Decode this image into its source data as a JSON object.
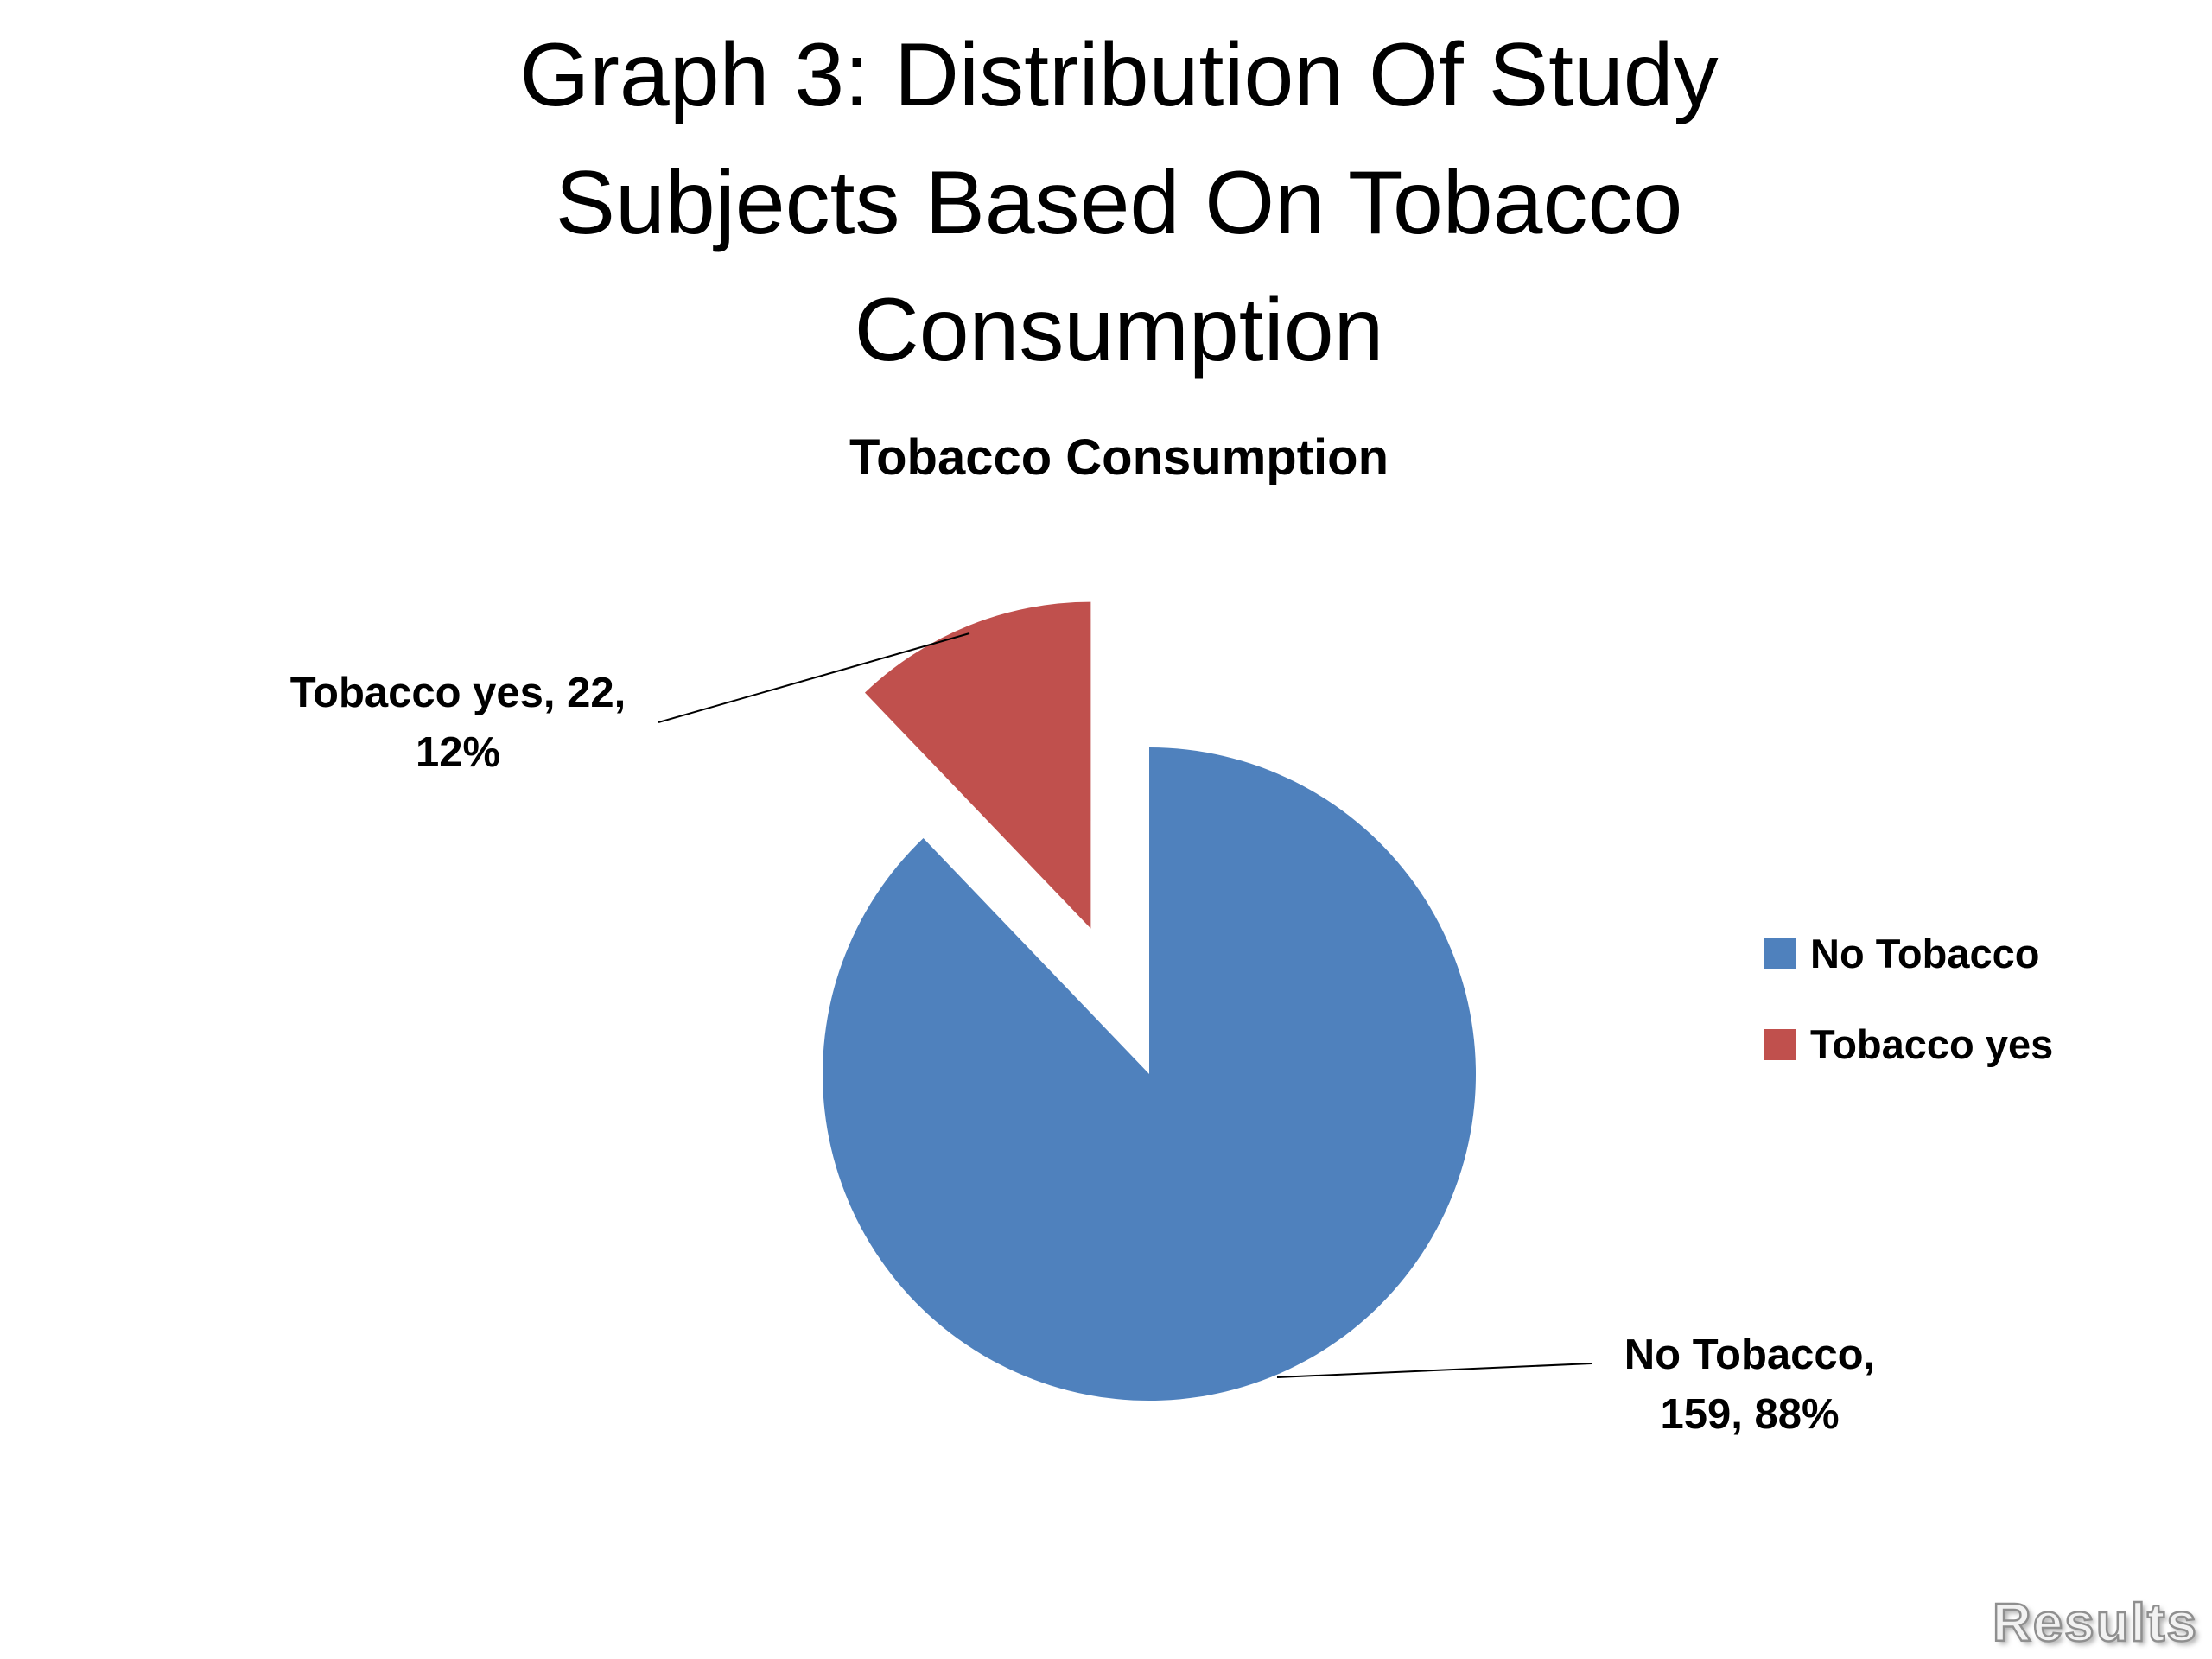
{
  "slide": {
    "title": "Graph 3: Distribution Of Study Subjects Based On Tobacco Consumption",
    "title_lines": [
      "Graph 3: Distribution Of Study",
      "Subjects Based On Tobacco",
      "Consumption"
    ],
    "results_tag": "Results"
  },
  "chart_data": {
    "type": "pie",
    "title": "Tobacco Consumption",
    "categories": [
      "No Tobacco",
      "Tobacco yes"
    ],
    "values": [
      159,
      22
    ],
    "percent_labels": [
      "88%",
      "12%"
    ],
    "colors": [
      "#4F81BD",
      "#C0504D"
    ],
    "exploded": [
      false,
      true
    ],
    "start_angle": 0,
    "legend_position": "right",
    "data_labels": [
      [
        "No Tobacco,",
        "159, 88%"
      ],
      [
        "Tobacco yes, 22,",
        "12%"
      ]
    ]
  }
}
